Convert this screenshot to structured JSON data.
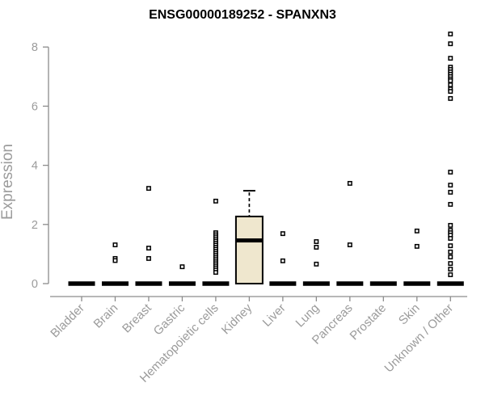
{
  "page": {
    "background": "#ffffff"
  },
  "chart_data": {
    "type": "boxplot",
    "title": "ENSG00000189252 - SPANXN3",
    "ylabel": "Expression",
    "xlabel": "",
    "ylim": [
      0,
      8.6
    ],
    "yticks": [
      0,
      2,
      4,
      6,
      8
    ],
    "grid": false,
    "legend": false,
    "colors": {
      "axis": "#8c8c8c",
      "tick_text": "#9b9b9b",
      "title_text": "#000000",
      "data": "#000000",
      "box_fill": "#efe7ce",
      "point_fill": "#ffffff"
    },
    "categories": [
      "Bladder",
      "Brain",
      "Breast",
      "Gastric",
      "Hematopoietic cells",
      "Kidney",
      "Liver",
      "Lung",
      "Pancreas",
      "Prostate",
      "Skin",
      "Unknown / Other"
    ],
    "groups": [
      {
        "category": "Bladder",
        "box": {
          "q1": 0,
          "median": 0,
          "q3": 0
        },
        "points": []
      },
      {
        "category": "Brain",
        "box": {
          "q1": 0,
          "median": 0,
          "q3": 0
        },
        "points": [
          1.31,
          0.85,
          0.78
        ]
      },
      {
        "category": "Breast",
        "box": {
          "q1": 0,
          "median": 0,
          "q3": 0
        },
        "points": [
          3.22,
          1.2,
          0.85
        ]
      },
      {
        "category": "Gastric",
        "box": {
          "q1": 0,
          "median": 0,
          "q3": 0
        },
        "points": [
          0.57
        ]
      },
      {
        "category": "Hematopoietic cells",
        "box": {
          "q1": 0,
          "median": 0,
          "q3": 0
        },
        "points": [
          2.79,
          1.72,
          1.65,
          1.58,
          1.51,
          1.44,
          1.37,
          1.3,
          1.23,
          1.16,
          1.09,
          1.02,
          0.95,
          0.88,
          0.81,
          0.74,
          0.67,
          0.6,
          0.53,
          0.46,
          0.38
        ]
      },
      {
        "category": "Kidney",
        "box": {
          "q1": 0,
          "median": 1.46,
          "q3": 2.27,
          "whisker_low": 0,
          "whisker_high": 3.14,
          "whisker_style": "dashed"
        },
        "points": []
      },
      {
        "category": "Liver",
        "box": {
          "q1": 0,
          "median": 0,
          "q3": 0
        },
        "points": [
          1.69,
          0.77
        ]
      },
      {
        "category": "Lung",
        "box": {
          "q1": 0,
          "median": 0,
          "q3": 0
        },
        "points": [
          1.42,
          1.23,
          0.66
        ]
      },
      {
        "category": "Pancreas",
        "box": {
          "q1": 0,
          "median": 0,
          "q3": 0
        },
        "points": [
          3.39,
          1.31
        ]
      },
      {
        "category": "Prostate",
        "box": {
          "q1": 0,
          "median": 0,
          "q3": 0
        },
        "points": []
      },
      {
        "category": "Skin",
        "box": {
          "q1": 0,
          "median": 0,
          "q3": 0
        },
        "points": [
          1.78,
          1.26
        ]
      },
      {
        "category": "Unknown / Other",
        "box": {
          "q1": 0,
          "median": 0,
          "q3": 0
        },
        "points": [
          8.44,
          8.11,
          7.62,
          7.32,
          7.24,
          7.16,
          7.08,
          7.0,
          6.92,
          6.86,
          6.72,
          6.58,
          6.5,
          6.26,
          3.77,
          3.33,
          3.09,
          2.68,
          1.97,
          1.8,
          1.72,
          1.64,
          1.53,
          1.28,
          1.07,
          0.9,
          0.68,
          0.49,
          0.3
        ]
      }
    ]
  }
}
